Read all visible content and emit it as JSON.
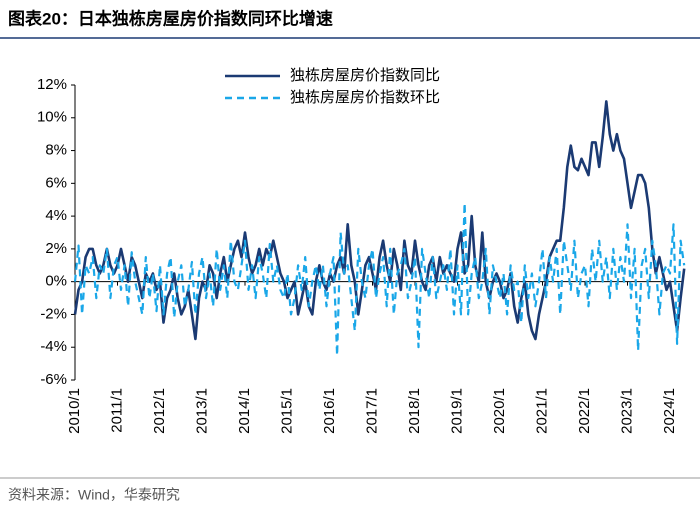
{
  "title": "图表20：日本独栋房屋房价指数同环比增速",
  "source": "资料来源：Wind，华泰研究",
  "chart_data": {
    "type": "line",
    "categories": [
      "2010/1",
      null,
      null,
      null,
      null,
      null,
      null,
      null,
      null,
      null,
      null,
      null,
      "2011/1",
      null,
      null,
      null,
      null,
      null,
      null,
      null,
      null,
      null,
      null,
      null,
      "2012/1",
      null,
      null,
      null,
      null,
      null,
      null,
      null,
      null,
      null,
      null,
      null,
      "2013/1",
      null,
      null,
      null,
      null,
      null,
      null,
      null,
      null,
      null,
      null,
      null,
      "2014/1",
      null,
      null,
      null,
      null,
      null,
      null,
      null,
      null,
      null,
      null,
      null,
      "2015/1",
      null,
      null,
      null,
      null,
      null,
      null,
      null,
      null,
      null,
      null,
      null,
      "2016/1",
      null,
      null,
      null,
      null,
      null,
      null,
      null,
      null,
      null,
      null,
      null,
      "2017/1",
      null,
      null,
      null,
      null,
      null,
      null,
      null,
      null,
      null,
      null,
      null,
      "2018/1",
      null,
      null,
      null,
      null,
      null,
      null,
      null,
      null,
      null,
      null,
      null,
      "2019/1",
      null,
      null,
      null,
      null,
      null,
      null,
      null,
      null,
      null,
      null,
      null,
      "2020/1",
      null,
      null,
      null,
      null,
      null,
      null,
      null,
      null,
      null,
      null,
      null,
      "2021/1",
      null,
      null,
      null,
      null,
      null,
      null,
      null,
      null,
      null,
      null,
      null,
      "2022/1",
      null,
      null,
      null,
      null,
      null,
      null,
      null,
      null,
      null,
      null,
      null,
      "2023/1",
      null,
      null,
      null,
      null,
      null,
      null,
      null,
      null,
      null,
      null,
      null,
      "2024/1",
      null,
      null,
      null,
      null
    ],
    "series": [
      {
        "name": "独栋房屋房价指数同比",
        "color": "#1b3a73",
        "dash": false,
        "values": [
          -2,
          -0.5,
          0,
          1.5,
          2,
          2,
          1,
          0.5,
          1,
          2,
          1,
          0.5,
          1,
          2,
          1,
          0,
          1.5,
          1,
          0,
          -1,
          0.5,
          0,
          0.5,
          -0.5,
          0,
          -2.5,
          -1,
          -0.5,
          0.5,
          -1,
          -2,
          -1.5,
          -0.5,
          -2,
          -3.5,
          -1,
          0,
          -0.5,
          1,
          0.5,
          -1,
          0.5,
          1.5,
          0,
          1,
          2,
          2.5,
          1.5,
          3,
          1.5,
          0.5,
          1,
          2,
          1,
          2,
          1.5,
          2.5,
          1.5,
          0.5,
          0,
          -1,
          -0.5,
          0,
          -2,
          -1,
          0,
          -1.5,
          -2,
          0,
          1,
          0,
          -0.5,
          0.5,
          0,
          1,
          1.5,
          0.5,
          3.5,
          1,
          0,
          -2,
          -0.5,
          1,
          1.5,
          0.5,
          -0.5,
          1.5,
          2.5,
          1,
          0,
          2,
          1,
          -0.5,
          2.5,
          1,
          0.5,
          2.5,
          1,
          0,
          -0.5,
          1,
          1.5,
          0,
          1.5,
          0.5,
          1,
          0.5,
          0,
          2,
          3,
          0.5,
          1,
          4,
          1,
          0,
          3,
          0,
          -1,
          0,
          0.5,
          0,
          -1,
          -0.5,
          0.5,
          -1.5,
          -2.5,
          -1,
          0,
          -2,
          -3,
          -3.5,
          -2,
          -1,
          0,
          1.5,
          2,
          2.5,
          2.5,
          4.5,
          7,
          8.3,
          7,
          6.8,
          7.5,
          7,
          6.5,
          8.5,
          8.5,
          7,
          8.8,
          11,
          9,
          8,
          9,
          8,
          7.5,
          6,
          4.5,
          5.5,
          6.5,
          6.5,
          6,
          4.5,
          2,
          0.5,
          1.5,
          0.5,
          -0.5,
          0,
          -1.5,
          -3,
          -1,
          0.8
        ]
      },
      {
        "name": "独栋房屋房价指数环比",
        "color": "#1aa7e8",
        "dash": true,
        "values": [
          0,
          2.2,
          -2,
          1,
          0.5,
          1.5,
          -1,
          1,
          0.5,
          2,
          -1,
          1,
          1.5,
          -0.5,
          1,
          -1.5,
          1.8,
          0,
          -1,
          -2,
          1.5,
          -1,
          0.5,
          -1.8,
          1,
          -2,
          0.5,
          1.5,
          -2.2,
          0,
          1,
          -1.5,
          -0.5,
          1.2,
          -2,
          0.5,
          1.5,
          -1,
          0.5,
          -1.5,
          2,
          -0.5,
          1,
          -1,
          2.5,
          0,
          -0.5,
          1,
          2.5,
          -0.5,
          1,
          -1,
          1.5,
          0.5,
          -1,
          2.3,
          0,
          1,
          -0.5,
          -1,
          0.5,
          -2,
          -1,
          1,
          -0.5,
          1.5,
          -1.5,
          0,
          1,
          -0.5,
          1,
          -1.5,
          0.5,
          1.5,
          -4.5,
          3,
          0.5,
          1,
          -1,
          -3,
          2,
          0,
          -1,
          1,
          2,
          -1,
          0.5,
          1.5,
          -1.5,
          2,
          -2,
          0.5,
          1,
          2,
          -1,
          0,
          1.5,
          -4,
          2,
          0.5,
          -1,
          1.5,
          -1,
          0,
          1,
          -0.5,
          2,
          -2,
          1,
          -2,
          4.8,
          -2,
          0.5,
          1.5,
          -1,
          0,
          2,
          -2,
          1,
          0,
          -1,
          0.5,
          -2,
          1,
          -0.5,
          0,
          -2.5,
          1,
          -1,
          0.5,
          -1.5,
          0,
          2,
          -1,
          1.5,
          0,
          2,
          -2,
          2.5,
          1,
          -0.5,
          2.5,
          -1,
          0.5,
          1,
          -1.5,
          2,
          0,
          2.5,
          0,
          1.5,
          -1,
          2,
          -0.5,
          1.5,
          0,
          3.5,
          -1,
          2,
          -4.2,
          1,
          2,
          -1,
          2.5,
          1,
          -2,
          0.5,
          1,
          0.5,
          3.5,
          -3.8,
          2.5,
          1
        ]
      }
    ],
    "ylim": [
      -6,
      12
    ],
    "yticks": [
      {
        "value": -6,
        "label": "-6%"
      },
      {
        "value": -4,
        "label": "-4%"
      },
      {
        "value": -2,
        "label": "-2%"
      },
      {
        "value": 0,
        "label": "0%"
      },
      {
        "value": 2,
        "label": "2%"
      },
      {
        "value": 4,
        "label": "4%"
      },
      {
        "value": 6,
        "label": "6%"
      },
      {
        "value": 8,
        "label": "8%"
      },
      {
        "value": 10,
        "label": "10%"
      },
      {
        "value": 12,
        "label": "12%"
      }
    ],
    "legend": "top",
    "grid": false
  }
}
